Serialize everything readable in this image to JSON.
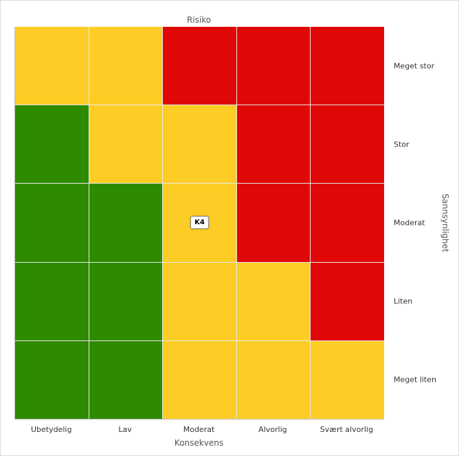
{
  "chart_data": {
    "type": "heatmap",
    "title": "Risiko",
    "xlabel": "Konsekvens",
    "ylabel": "Sannsynlighet",
    "x_categories": [
      "Ubetydelig",
      "Lav",
      "Moderat",
      "Alvorlig",
      "Svært alvorlig"
    ],
    "y_categories": [
      "Meget stor",
      "Stor",
      "Moderat",
      "Liten",
      "Meget liten"
    ],
    "colors": {
      "green": "#2e8b00",
      "yellow": "#fdcd25",
      "red": "#e00806"
    },
    "matrix": [
      [
        "yellow",
        "yellow",
        "red",
        "red",
        "red"
      ],
      [
        "green",
        "yellow",
        "yellow",
        "red",
        "red"
      ],
      [
        "green",
        "green",
        "yellow",
        "red",
        "red"
      ],
      [
        "green",
        "green",
        "yellow",
        "yellow",
        "red"
      ],
      [
        "green",
        "green",
        "yellow",
        "yellow",
        "yellow"
      ]
    ],
    "markers": [
      {
        "label": "K4",
        "x": "Moderat",
        "y": "Moderat"
      }
    ]
  }
}
